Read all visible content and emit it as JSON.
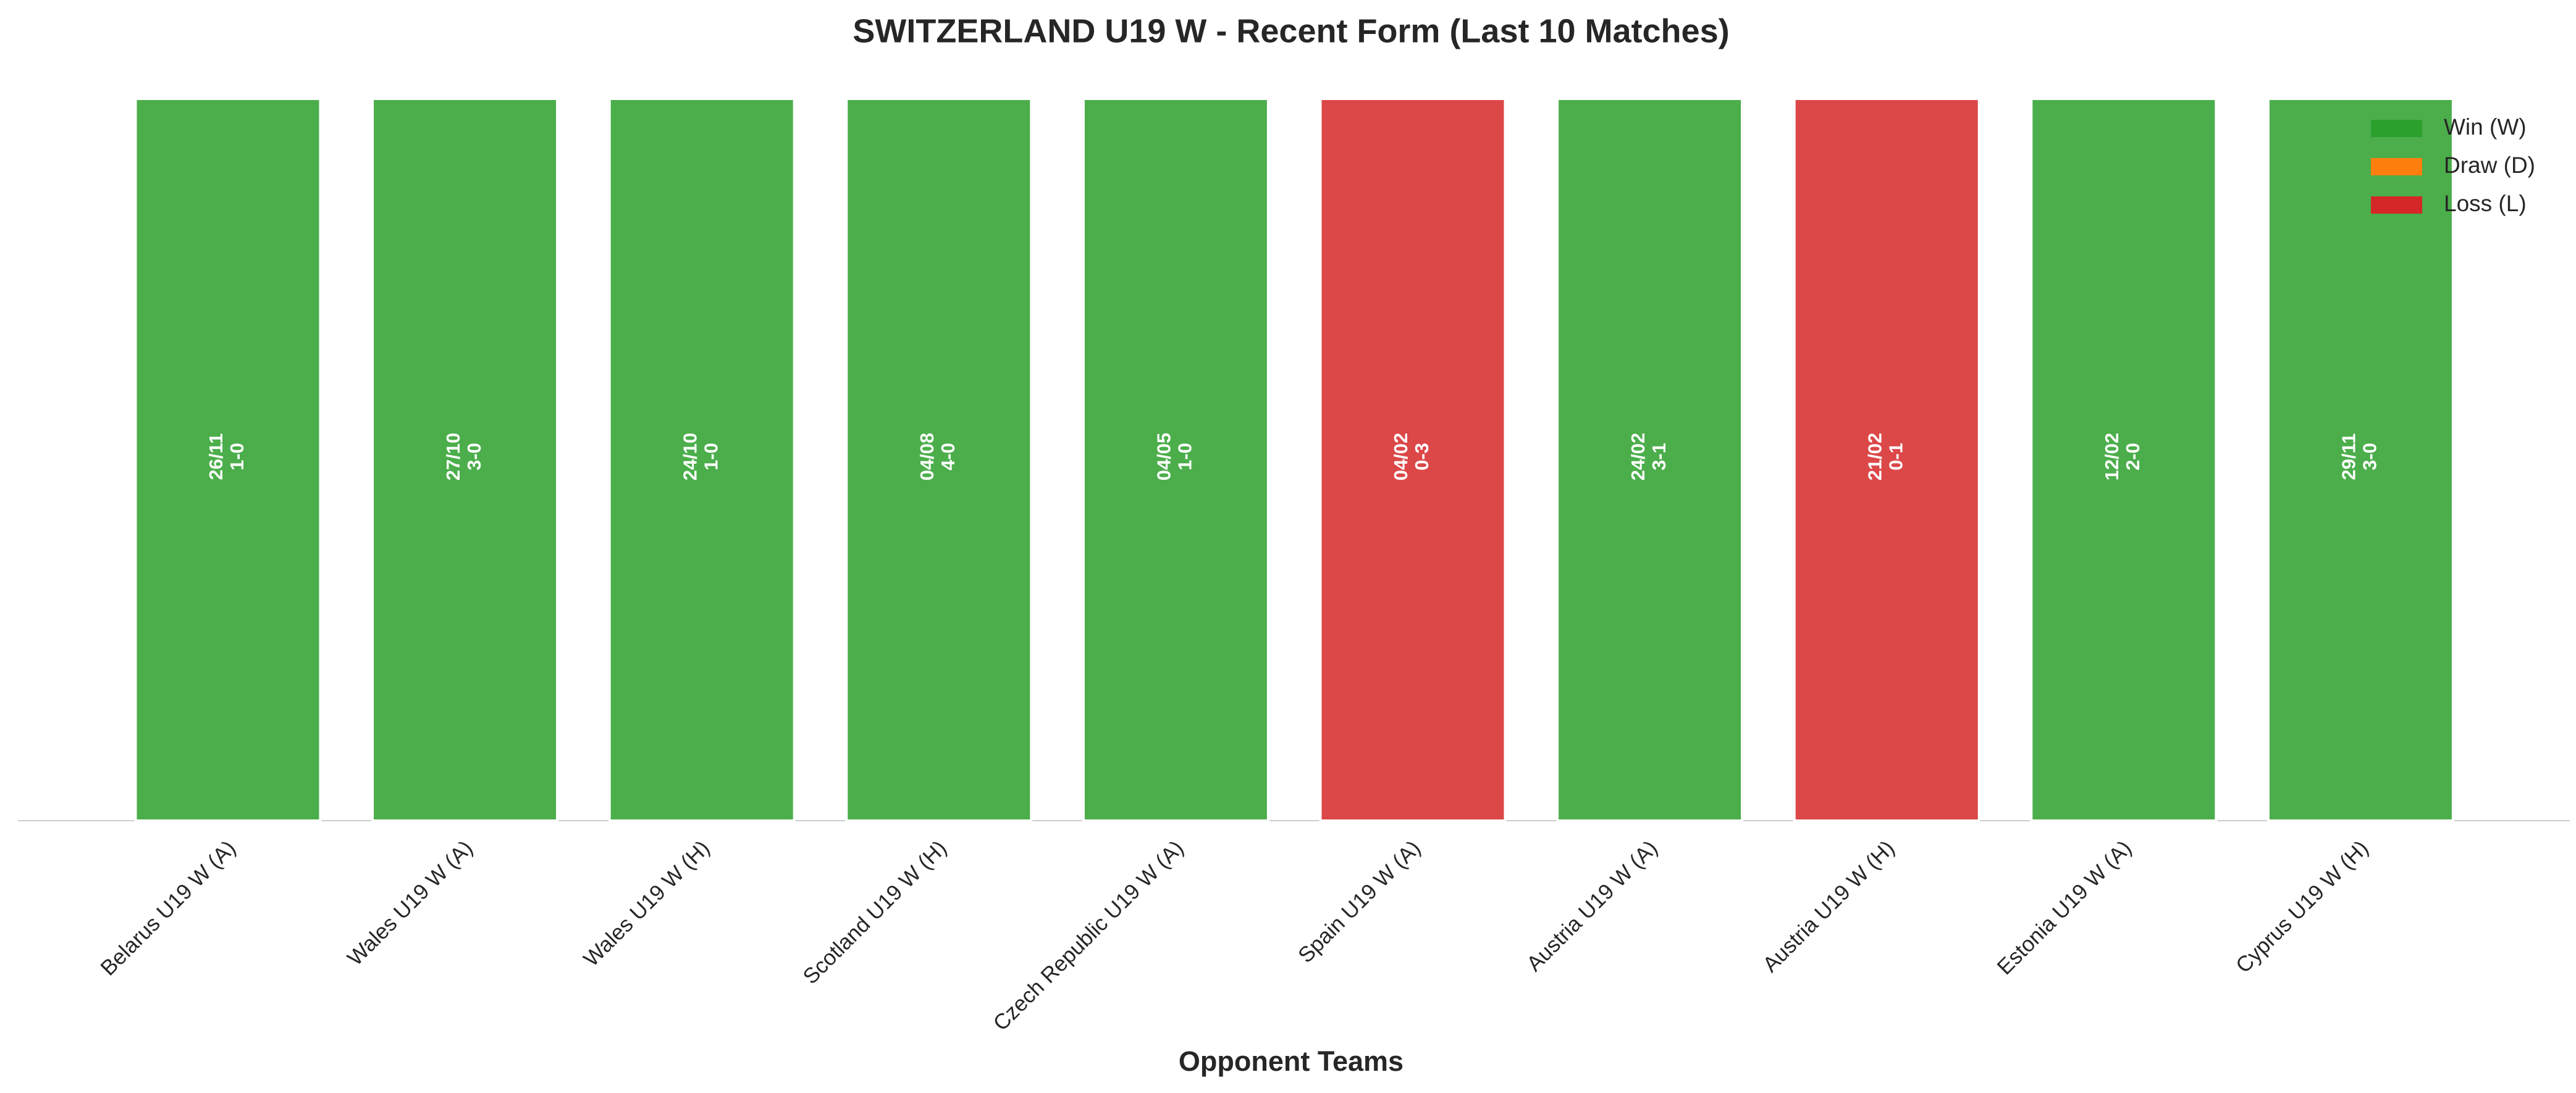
{
  "chart_data": {
    "type": "bar",
    "title": "SWITZERLAND U19 W - Recent Form (Last 10 Matches)",
    "xlabel": "Opponent Teams",
    "categories": [
      "Belarus U19 W (A)",
      "Wales U19 W (A)",
      "Wales U19 W (H)",
      "Scotland U19 W (H)",
      "Czech Republic U19 W (A)",
      "Spain U19 W (A)",
      "Austria U19 W (A)",
      "Austria U19 W (H)",
      "Estonia U19 W (A)",
      "Cyprus U19 W (H)"
    ],
    "values": [
      1,
      1,
      1,
      1,
      1,
      1,
      1,
      1,
      1,
      1
    ],
    "ylim": [
      0,
      1
    ],
    "dates": [
      "26/11",
      "27/10",
      "24/10",
      "04/08",
      "04/05",
      "04/02",
      "24/02",
      "21/02",
      "12/02",
      "29/11"
    ],
    "scores": [
      "1-0",
      "3-0",
      "1-0",
      "4-0",
      "1-0",
      "0-3",
      "3-1",
      "0-1",
      "2-0",
      "3-0"
    ],
    "results": [
      "W",
      "W",
      "W",
      "W",
      "W",
      "L",
      "W",
      "L",
      "W",
      "W"
    ],
    "legend": [
      {
        "key": "W",
        "label": "Win (W)",
        "color": "#2ca02c"
      },
      {
        "key": "D",
        "label": "Draw (D)",
        "color": "#ff7f0e"
      },
      {
        "key": "L",
        "label": "Loss (L)",
        "color": "#d62728"
      }
    ],
    "legend_position": "upper right",
    "bar_opacity": 0.85
  }
}
